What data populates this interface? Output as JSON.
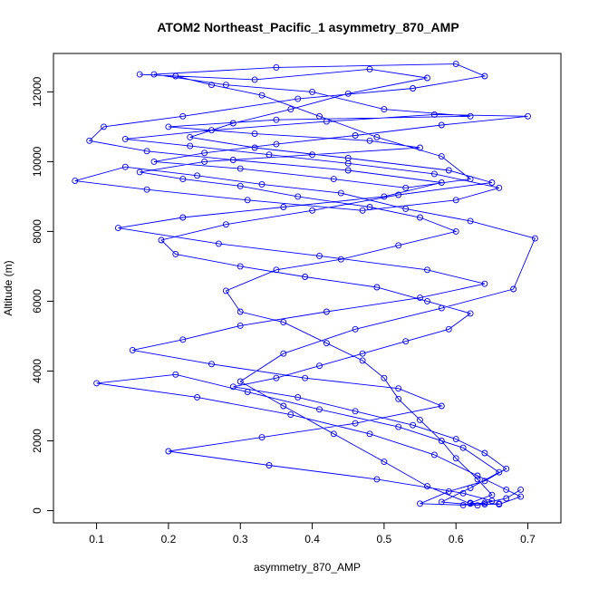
{
  "chart_data": {
    "type": "line",
    "title": "ATOM2 Northeast_Pacific_1 asymmetry_870_AMP",
    "xlabel": "asymmetry_870_AMP",
    "ylabel": "Altitude (m)",
    "xlim": [
      0.04,
      0.746
    ],
    "ylim": [
      -350,
      13100
    ],
    "x_ticks": [
      0.1,
      0.2,
      0.3,
      0.4,
      0.5,
      0.6,
      0.7
    ],
    "y_ticks": [
      0,
      2000,
      4000,
      6000,
      8000,
      10000,
      12000
    ],
    "grid": false,
    "legend": "none",
    "series": [
      {
        "color": "#0000ff",
        "marker": "open-circle",
        "points": [
          [
            0.66,
            200
          ],
          [
            0.64,
            180
          ],
          [
            0.62,
            220
          ],
          [
            0.65,
            450
          ],
          [
            0.63,
            900
          ],
          [
            0.6,
            1500
          ],
          [
            0.58,
            2000
          ],
          [
            0.55,
            2600
          ],
          [
            0.52,
            3200
          ],
          [
            0.5,
            3800
          ],
          [
            0.47,
            4300
          ],
          [
            0.42,
            4800
          ],
          [
            0.36,
            5400
          ],
          [
            0.3,
            5700
          ],
          [
            0.28,
            6300
          ],
          [
            0.35,
            6900
          ],
          [
            0.44,
            7200
          ],
          [
            0.52,
            7600
          ],
          [
            0.6,
            8000
          ],
          [
            0.55,
            8400
          ],
          [
            0.48,
            8700
          ],
          [
            0.38,
            9000
          ],
          [
            0.3,
            9300
          ],
          [
            0.22,
            9500
          ],
          [
            0.16,
            9700
          ],
          [
            0.25,
            10000
          ],
          [
            0.4,
            10200
          ],
          [
            0.55,
            10400
          ],
          [
            0.48,
            10600
          ],
          [
            0.32,
            10800
          ],
          [
            0.2,
            11000
          ],
          [
            0.35,
            11200
          ],
          [
            0.62,
            11300
          ],
          [
            0.5,
            11500
          ],
          [
            0.4,
            12000
          ],
          [
            0.28,
            12200
          ],
          [
            0.18,
            12500
          ],
          [
            0.35,
            12700
          ],
          [
            0.6,
            12800
          ],
          [
            0.64,
            12450
          ],
          [
            0.54,
            12100
          ],
          [
            0.38,
            11800
          ],
          [
            0.22,
            11300
          ],
          [
            0.11,
            11000
          ],
          [
            0.09,
            10600
          ],
          [
            0.17,
            10300
          ],
          [
            0.29,
            10050
          ],
          [
            0.45,
            9750
          ],
          [
            0.58,
            9400
          ],
          [
            0.5,
            9000
          ],
          [
            0.36,
            8700
          ],
          [
            0.22,
            8400
          ],
          [
            0.13,
            8100
          ],
          [
            0.27,
            7650
          ],
          [
            0.41,
            7300
          ],
          [
            0.56,
            6900
          ],
          [
            0.64,
            6500
          ],
          [
            0.55,
            6100
          ],
          [
            0.42,
            5700
          ],
          [
            0.3,
            5300
          ],
          [
            0.22,
            4900
          ],
          [
            0.15,
            4600
          ],
          [
            0.26,
            4200
          ],
          [
            0.39,
            3800
          ],
          [
            0.52,
            3500
          ],
          [
            0.58,
            3000
          ],
          [
            0.46,
            2500
          ],
          [
            0.33,
            2100
          ],
          [
            0.2,
            1700
          ],
          [
            0.34,
            1300
          ],
          [
            0.49,
            900
          ],
          [
            0.61,
            500
          ],
          [
            0.65,
            280
          ],
          [
            0.63,
            150
          ],
          [
            0.58,
            250
          ],
          [
            0.62,
            650
          ],
          [
            0.66,
            1100
          ],
          [
            0.61,
            1800
          ],
          [
            0.52,
            2400
          ],
          [
            0.41,
            2900
          ],
          [
            0.31,
            3400
          ],
          [
            0.21,
            3900
          ],
          [
            0.1,
            3650
          ],
          [
            0.24,
            3250
          ],
          [
            0.37,
            2750
          ],
          [
            0.48,
            2200
          ],
          [
            0.57,
            1600
          ],
          [
            0.63,
            1000
          ],
          [
            0.67,
            600
          ],
          [
            0.69,
            400
          ],
          [
            0.66,
            180
          ],
          [
            0.62,
            200
          ],
          [
            0.56,
            700
          ],
          [
            0.5,
            1400
          ],
          [
            0.43,
            2200
          ],
          [
            0.36,
            3000
          ],
          [
            0.3,
            3700
          ],
          [
            0.36,
            4500
          ],
          [
            0.46,
            5200
          ],
          [
            0.58,
            5800
          ],
          [
            0.68,
            6350
          ],
          [
            0.71,
            7800
          ],
          [
            0.62,
            8300
          ],
          [
            0.53,
            8650
          ],
          [
            0.44,
            9100
          ],
          [
            0.33,
            9350
          ],
          [
            0.24,
            9600
          ],
          [
            0.14,
            9850
          ],
          [
            0.07,
            9450
          ],
          [
            0.17,
            9200
          ],
          [
            0.31,
            8900
          ],
          [
            0.47,
            8600
          ],
          [
            0.6,
            8900
          ],
          [
            0.66,
            9250
          ],
          [
            0.57,
            9650
          ],
          [
            0.45,
            9950
          ],
          [
            0.34,
            10200
          ],
          [
            0.23,
            10450
          ],
          [
            0.14,
            10650
          ],
          [
            0.26,
            10900
          ],
          [
            0.42,
            11150
          ],
          [
            0.57,
            11350
          ],
          [
            0.7,
            11300
          ],
          [
            0.58,
            11050
          ],
          [
            0.46,
            10750
          ],
          [
            0.35,
            10500
          ],
          [
            0.25,
            10250
          ],
          [
            0.18,
            10000
          ],
          [
            0.3,
            9800
          ],
          [
            0.43,
            9500
          ],
          [
            0.53,
            9250
          ],
          [
            0.62,
            9500
          ],
          [
            0.58,
            10150
          ],
          [
            0.49,
            10700
          ],
          [
            0.41,
            11300
          ],
          [
            0.33,
            11900
          ],
          [
            0.26,
            12200
          ],
          [
            0.21,
            12450
          ],
          [
            0.16,
            12500
          ],
          [
            0.32,
            12350
          ],
          [
            0.48,
            12650
          ],
          [
            0.56,
            12400
          ],
          [
            0.45,
            11950
          ],
          [
            0.37,
            11500
          ],
          [
            0.29,
            11100
          ],
          [
            0.23,
            10700
          ],
          [
            0.32,
            10400
          ],
          [
            0.45,
            10100
          ],
          [
            0.59,
            9750
          ],
          [
            0.65,
            9400
          ],
          [
            0.52,
            9050
          ],
          [
            0.4,
            8600
          ],
          [
            0.28,
            8200
          ],
          [
            0.19,
            7750
          ],
          [
            0.21,
            7350
          ],
          [
            0.3,
            7000
          ],
          [
            0.39,
            6700
          ],
          [
            0.49,
            6400
          ],
          [
            0.56,
            6000
          ],
          [
            0.62,
            5650
          ],
          [
            0.59,
            5200
          ],
          [
            0.53,
            4850
          ],
          [
            0.47,
            4500
          ],
          [
            0.41,
            4150
          ],
          [
            0.35,
            3800
          ],
          [
            0.29,
            3550
          ],
          [
            0.38,
            3250
          ],
          [
            0.46,
            2850
          ],
          [
            0.54,
            2450
          ],
          [
            0.6,
            2050
          ],
          [
            0.64,
            1650
          ],
          [
            0.67,
            1200
          ],
          [
            0.64,
            850
          ],
          [
            0.59,
            550
          ],
          [
            0.55,
            200
          ],
          [
            0.61,
            160
          ],
          [
            0.64,
            220
          ],
          [
            0.67,
            350
          ],
          [
            0.69,
            600
          ]
        ]
      }
    ]
  }
}
